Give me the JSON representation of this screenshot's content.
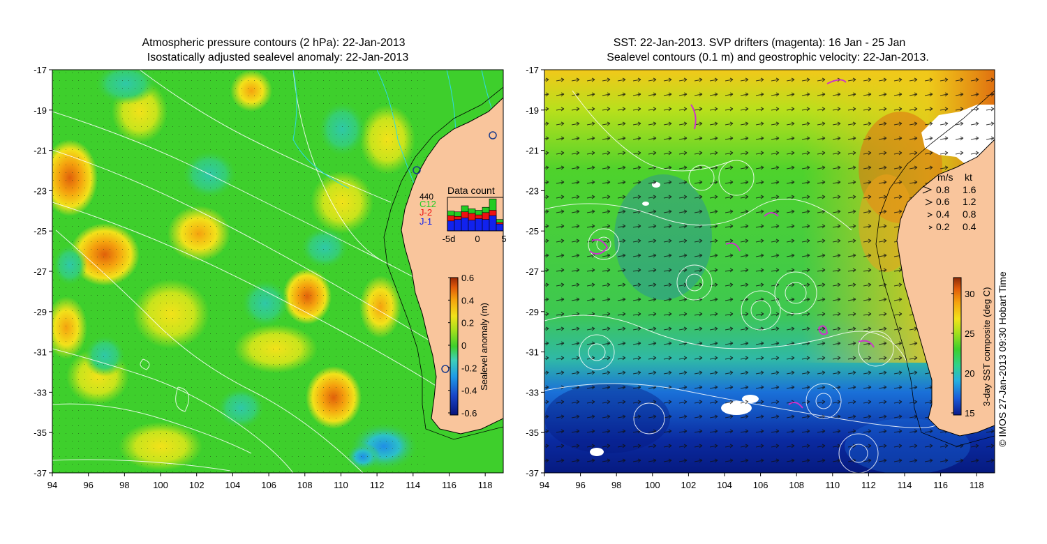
{
  "left_panel": {
    "title_line1": "Atmospheric pressure contours (2 hPa): 22-Jan-2013",
    "title_line2": "Isostatically adjusted sealevel anomaly: 22-Jan-2013",
    "colorbar": {
      "label": "Sealevel anomaly (m)",
      "ticks": [
        "0.6",
        "0.4",
        "0.2",
        "0",
        "-0.2",
        "-0.4",
        "-0.6"
      ],
      "colors": [
        "#08137a",
        "#1a45c8",
        "#1f9be6",
        "#3fd0b8",
        "#3ecf2c",
        "#a8e01c",
        "#f2e21a",
        "#f5a20e",
        "#e05a0a",
        "#9a2a06"
      ]
    },
    "data_count": {
      "title": "Data count",
      "max_label": "440",
      "series": [
        {
          "name": "C12",
          "color": "#22cc22",
          "values": [
            260,
            250,
            330,
            290,
            270,
            310,
            420,
            150
          ]
        },
        {
          "name": "J-2",
          "color": "#ee1111",
          "values": [
            200,
            190,
            250,
            230,
            210,
            240,
            270,
            110
          ]
        },
        {
          "name": "J-1",
          "color": "#1122ee",
          "values": [
            130,
            150,
            170,
            140,
            160,
            150,
            200,
            90
          ]
        }
      ],
      "xticks": [
        "-5d",
        "0",
        "5"
      ]
    }
  },
  "right_panel": {
    "title_line1": "SST: 22-Jan-2013. SVP drifters (magenta): 16 Jan - 25 Jan",
    "title_line2": "Sealevel contours (0.1 m) and geostrophic velocity: 22-Jan-2013.",
    "colorbar": {
      "label": "3-day SST composite (deg C)",
      "ticks": [
        "30",
        "25",
        "20",
        "15"
      ],
      "colors": [
        "#0a1a8a",
        "#1a5ad8",
        "#25b0e0",
        "#2fd28a",
        "#3ecf2c",
        "#a8e01c",
        "#f2e21a",
        "#f5a20e",
        "#e05a0a",
        "#8a2a08"
      ]
    },
    "velocity_legend": {
      "header_ms": "m/s",
      "header_kt": "kt",
      "rows": [
        {
          "ms": "0.8",
          "kt": "1.6"
        },
        {
          "ms": "0.6",
          "kt": "1.2"
        },
        {
          "ms": "0.4",
          "kt": "0.8"
        },
        {
          "ms": "0.2",
          "kt": "0.4"
        }
      ]
    }
  },
  "axes": {
    "x_ticks": [
      "94",
      "96",
      "98",
      "100",
      "102",
      "104",
      "106",
      "108",
      "110",
      "112",
      "114",
      "116",
      "118"
    ],
    "y_ticks": [
      "-17",
      "-19",
      "-21",
      "-23",
      "-25",
      "-27",
      "-29",
      "-31",
      "-33",
      "-35",
      "-37"
    ],
    "lon_range": [
      94,
      119
    ],
    "lat_range": [
      -37,
      -17
    ]
  },
  "credit": "© IMOS 27-Jan-2013 09:30 Hobart Time",
  "colors": {
    "land": "#f9c59c",
    "ocean_mid": "#3ecf2c",
    "contour": "#ffffff",
    "coast": "#000000"
  }
}
